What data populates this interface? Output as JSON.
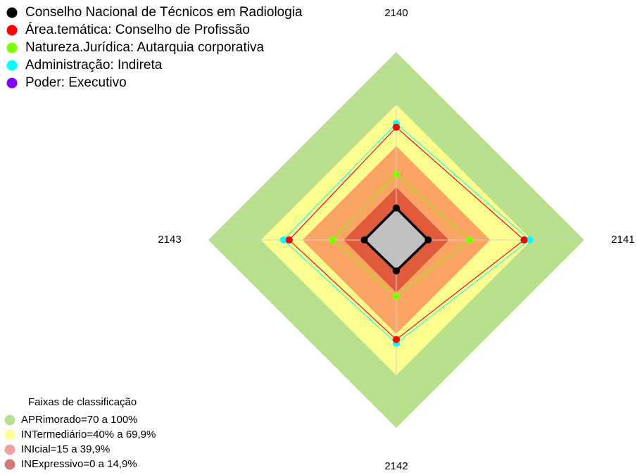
{
  "chart_data": {
    "type": "radar",
    "axes": [
      "2140",
      "2141",
      "2142",
      "2143"
    ],
    "rlim": [
      0,
      100
    ],
    "bands": [
      {
        "value": 100,
        "color": "#b8e08c"
      },
      {
        "value": 72,
        "color": "#ffff8f"
      },
      {
        "value": 50,
        "color": "#fba464"
      },
      {
        "value": 28,
        "color": "#e05a3c"
      }
    ],
    "series": [
      {
        "name": "Conselho Nacional de Técnicos em Radiologia",
        "color": "#000000",
        "fill": "#c0c0c0",
        "values": [
          17,
          17,
          16.5,
          17
        ]
      },
      {
        "name": "Área.temática: Conselho de Profissão",
        "color": "#ff0000",
        "values": [
          60,
          68,
          53,
          57
        ]
      },
      {
        "name": "Natureza.Jurídica: Autarquia corporativa",
        "color": "#7fff00",
        "values": [
          35,
          39,
          30,
          34
        ]
      },
      {
        "name": "Administração: Indireta",
        "color": "#00ffff",
        "values": [
          62,
          71,
          55,
          60
        ]
      },
      {
        "name": "Poder: Executivo",
        "color": "#8000ff",
        "values": [
          60,
          68,
          53,
          57
        ]
      }
    ],
    "band_legend": {
      "title": "Faixas de classificação",
      "items": [
        {
          "label": "APRimorado=70 a 100%",
          "color": "#b8e08c"
        },
        {
          "label": "INTermediário=40% a 69,9%",
          "color": "#ffff99"
        },
        {
          "label": "INIcial=15 a 39,9%",
          "color": "#f4a0a0"
        },
        {
          "label": "INExpressivo=0 a 14,9%",
          "color": "#d07a7a"
        }
      ]
    }
  }
}
